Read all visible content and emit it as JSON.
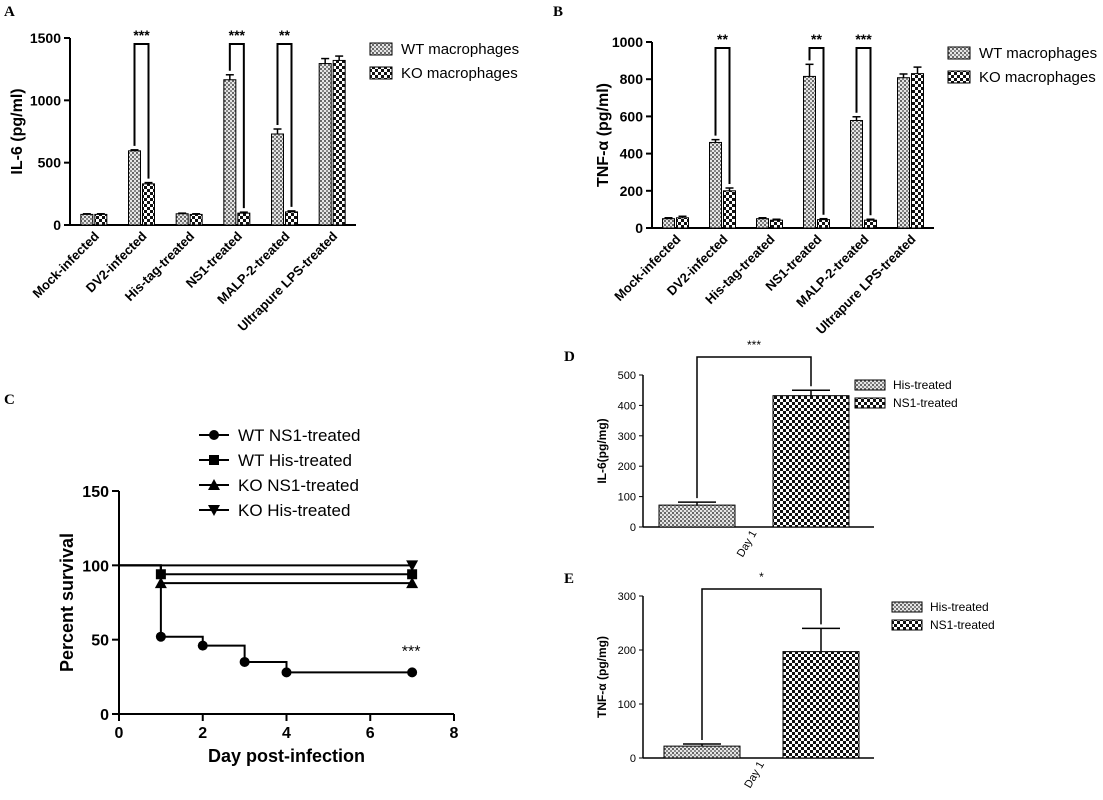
{
  "figure": {
    "panel_labels": [
      "A",
      "B",
      "C",
      "D",
      "E"
    ]
  },
  "chart_data": [
    {
      "id": "A",
      "type": "bar",
      "ylabel": "IL-6 (pg/ml)",
      "ylim": [
        0,
        1500
      ],
      "yticks": [
        "0",
        "500",
        "1000",
        "1500"
      ],
      "categories": [
        "Mock-infected",
        "DV2-infected",
        "His-tag-treated",
        "NS1-treated",
        "MALP-2-treated",
        "Ultrapure LPS-treated"
      ],
      "series": [
        {
          "name": "WT macrophages",
          "values": [
            85,
            595,
            90,
            1165,
            730,
            1295
          ],
          "errors": [
            5,
            8,
            5,
            40,
            40,
            40
          ]
        },
        {
          "name": "KO macrophages",
          "values": [
            85,
            330,
            85,
            95,
            105,
            1320
          ],
          "errors": [
            5,
            10,
            5,
            8,
            8,
            35
          ]
        }
      ],
      "significance": [
        {
          "category_index": 1,
          "label": "***"
        },
        {
          "category_index": 3,
          "label": "***"
        },
        {
          "category_index": 4,
          "label": "**"
        }
      ],
      "legend": "top-right"
    },
    {
      "id": "B",
      "type": "bar",
      "ylabel": "TNF-α (pg/ml)",
      "ylim": [
        0,
        1000
      ],
      "yticks": [
        "0",
        "200",
        "400",
        "600",
        "800",
        "1000"
      ],
      "categories": [
        "Mock-infected",
        "DV2-infected",
        "His-tag-treated",
        "NS1-treated",
        "MALP-2-treated",
        "Ultrapure LPS-treated"
      ],
      "series": [
        {
          "name": "WT macrophages",
          "values": [
            50,
            460,
            50,
            815,
            578,
            808
          ],
          "errors": [
            5,
            15,
            5,
            65,
            20,
            20
          ]
        },
        {
          "name": "KO macrophages",
          "values": [
            55,
            200,
            42,
            45,
            42,
            830
          ],
          "errors": [
            8,
            15,
            5,
            5,
            5,
            35
          ]
        }
      ],
      "significance": [
        {
          "category_index": 1,
          "label": "**"
        },
        {
          "category_index": 3,
          "label": "**"
        },
        {
          "category_index": 4,
          "label": "***"
        }
      ],
      "legend": "top-right"
    },
    {
      "id": "C",
      "type": "line",
      "step": true,
      "xlabel": "Day post-infection",
      "ylabel": "Percent survival",
      "xlim": [
        0,
        8
      ],
      "ylim": [
        0,
        150
      ],
      "xticks": [
        "0",
        "2",
        "4",
        "6",
        "8"
      ],
      "yticks": [
        "0",
        "50",
        "100",
        "150"
      ],
      "series": [
        {
          "name": "WT NS1-treated",
          "marker": "circle",
          "x": [
            0,
            1,
            2,
            3,
            4,
            7
          ],
          "y": [
            100,
            52,
            46,
            35,
            28,
            28
          ]
        },
        {
          "name": "WT His-treated",
          "marker": "square",
          "x": [
            0,
            1,
            7
          ],
          "y": [
            100,
            94,
            94
          ]
        },
        {
          "name": "KO NS1-treated",
          "marker": "triangle-up",
          "x": [
            0,
            1,
            7
          ],
          "y": [
            100,
            88,
            88
          ]
        },
        {
          "name": "KO His-treated",
          "marker": "triangle-down",
          "x": [
            0,
            7
          ],
          "y": [
            100,
            100
          ]
        }
      ],
      "annotation": "***",
      "legend": "top"
    },
    {
      "id": "D",
      "type": "bar",
      "ylabel": "IL-6(pg/mg)",
      "ylim": [
        0,
        500
      ],
      "yticks": [
        "0",
        "100",
        "200",
        "300",
        "400",
        "500"
      ],
      "categories": [
        "Day 1"
      ],
      "series": [
        {
          "name": "His-treated",
          "values": [
            72
          ],
          "errors": [
            10
          ]
        },
        {
          "name": "NS1-treated",
          "values": [
            432
          ],
          "errors": [
            18
          ]
        }
      ],
      "significance_label": "***",
      "legend": "top-right"
    },
    {
      "id": "E",
      "type": "bar",
      "ylabel": "TNF-α (pg/mg)",
      "ylim": [
        0,
        300
      ],
      "yticks": [
        "0",
        "100",
        "200",
        "300"
      ],
      "categories": [
        "Day 1"
      ],
      "series": [
        {
          "name": "His-treated",
          "values": [
            22
          ],
          "errors": [
            4
          ]
        },
        {
          "name": "NS1-treated",
          "values": [
            197
          ],
          "errors": [
            43
          ]
        }
      ],
      "significance_label": "*",
      "legend": "top-right"
    }
  ]
}
